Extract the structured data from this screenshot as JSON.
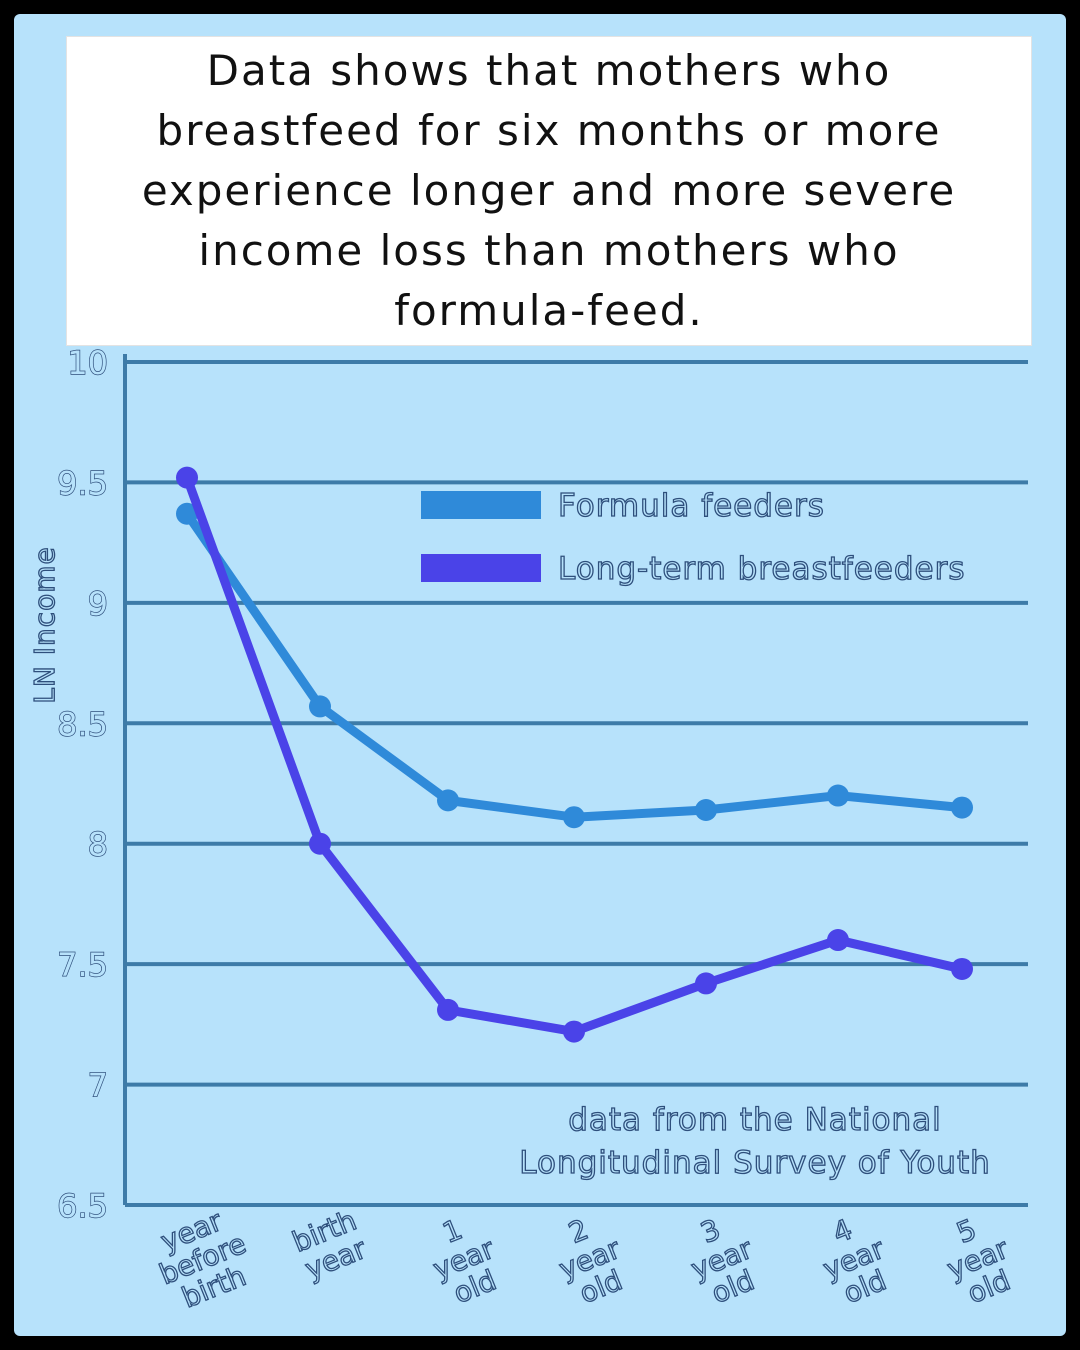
{
  "title": "Data shows that mothers who breastfeed for six months or more experience longer and more severe income loss than mothers who formula-feed.",
  "colors": {
    "background": "#b7e2fb",
    "grid": "#3d7ba8",
    "formula": "#2f8ad9",
    "breastfeed": "#4a43e8"
  },
  "note_lines": [
    "data from the National",
    "Longitudinal Survey of Youth"
  ],
  "chart_data": {
    "type": "line",
    "ylabel": "LN Income",
    "ylim": [
      6.5,
      10
    ],
    "yticks": [
      {
        "value": 10,
        "label": "10"
      },
      {
        "value": 9.5,
        "label": "9.5"
      },
      {
        "value": 9,
        "label": "9"
      },
      {
        "value": 8.5,
        "label": "8.5"
      },
      {
        "value": 8,
        "label": "8"
      },
      {
        "value": 7.5,
        "label": "7.5"
      },
      {
        "value": 7,
        "label": "7"
      },
      {
        "value": 6.5,
        "label": "6.5"
      }
    ],
    "grid": true,
    "legend_position": "top-right",
    "categories": [
      [
        "year",
        "before",
        "birth"
      ],
      [
        "birth",
        "year"
      ],
      [
        "1",
        "year",
        "old"
      ],
      [
        "2",
        "year",
        "old"
      ],
      [
        "3",
        "year",
        "old"
      ],
      [
        "4",
        "year",
        "old"
      ],
      [
        "5",
        "year",
        "old"
      ]
    ],
    "series": [
      {
        "name": "Formula feeders",
        "color": "#2f8ad9",
        "values": [
          9.37,
          8.57,
          8.18,
          8.11,
          8.14,
          8.2,
          8.15
        ]
      },
      {
        "name": "Long-term breastfeeders",
        "color": "#4a43e8",
        "values": [
          9.52,
          8.0,
          7.31,
          7.22,
          7.42,
          7.6,
          7.48
        ]
      }
    ]
  }
}
